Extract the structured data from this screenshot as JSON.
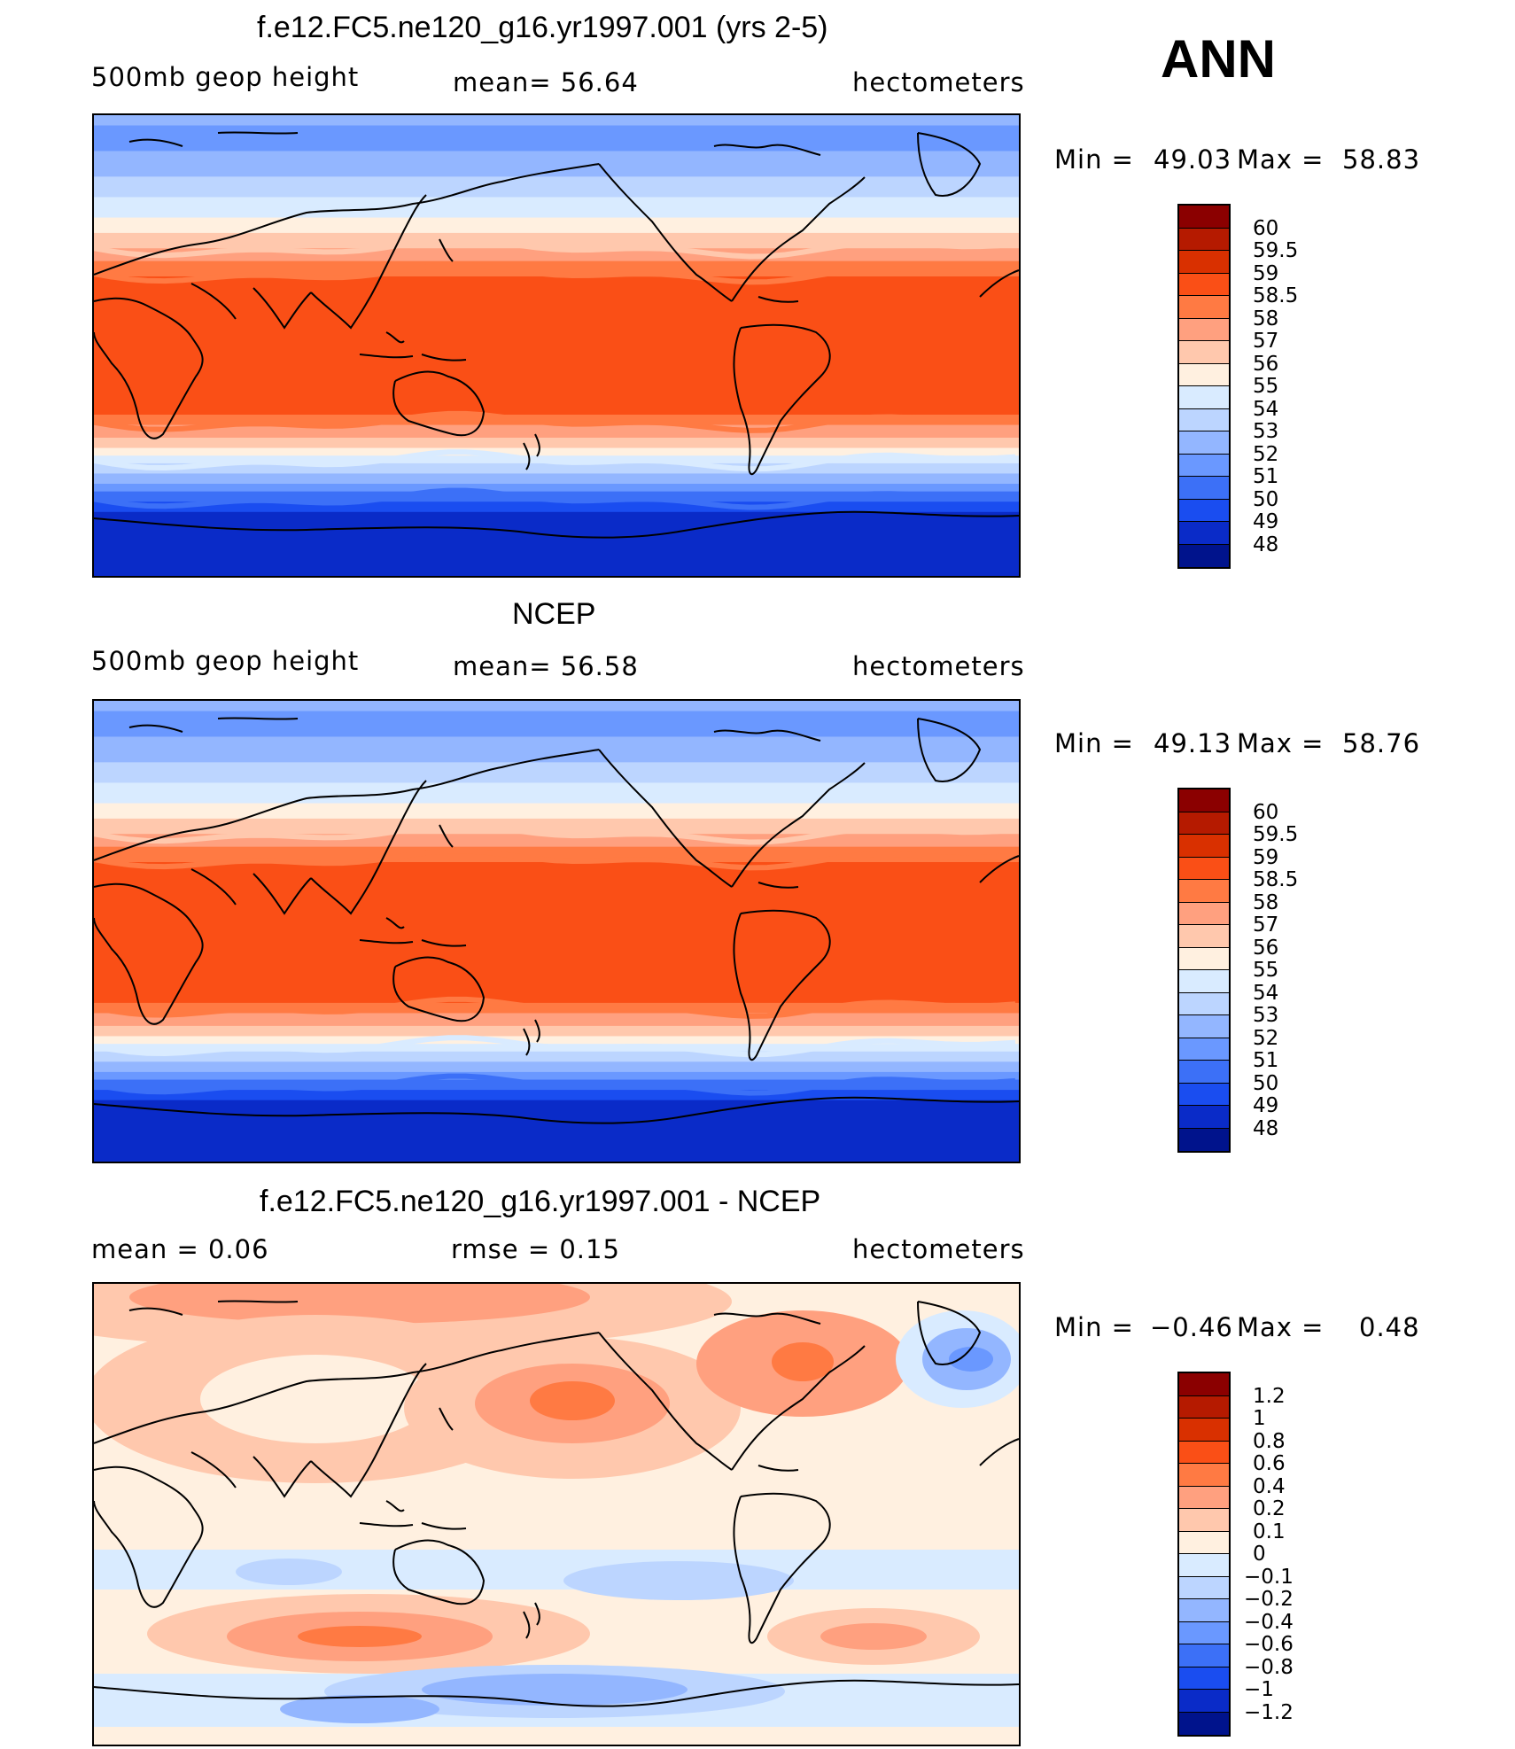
{
  "season": "ANN",
  "panels": [
    {
      "title": "f.e12.FC5.ne120_g16.yr1997.001 (yrs 2-5)",
      "left_label": "500mb geop height",
      "center_label": "mean=  56.64",
      "right_label": "hectometers",
      "min_text": "Min =",
      "min_value": "49.03",
      "max_text": "Max =",
      "max_value": "58.83",
      "field": "model"
    },
    {
      "title": "NCEP",
      "left_label": "500mb geop height",
      "center_label": "mean=  56.58",
      "right_label": "hectometers",
      "min_text": "Min =",
      "min_value": "49.13",
      "max_text": "Max =",
      "max_value": "58.76",
      "field": "obs"
    },
    {
      "title": "f.e12.FC5.ne120_g16.yr1997.001 - NCEP",
      "left_label": "mean =     0.06",
      "center_label": "rmse =     0.15",
      "right_label": "hectometers",
      "min_text": "Min =",
      "min_value": "−0.46",
      "max_text": "Max =",
      "max_value": "0.48",
      "field": "diff"
    }
  ],
  "colorbars": {
    "absolute": {
      "labels": [
        "60",
        "59.5",
        "59",
        "58.5",
        "58",
        "57",
        "56",
        "55",
        "54",
        "53",
        "52",
        "51",
        "50",
        "49",
        "48"
      ],
      "colors": [
        "#8b0000",
        "#b51a00",
        "#d93000",
        "#fa4f16",
        "#ff7a43",
        "#ffa07f",
        "#ffc8ad",
        "#fff0e0",
        "#d9ebff",
        "#bcd5ff",
        "#93b6ff",
        "#6a98ff",
        "#3c70f7",
        "#1a4df0",
        "#0a2bc8",
        "#00138c"
      ]
    },
    "difference": {
      "labels": [
        "1.2",
        "1",
        "0.8",
        "0.6",
        "0.4",
        "0.2",
        "0.1",
        "0",
        "−0.1",
        "−0.2",
        "−0.4",
        "−0.6",
        "−0.8",
        "−1",
        "−1.2"
      ],
      "colors": [
        "#8b0000",
        "#b51a00",
        "#d93000",
        "#fa4f16",
        "#ff7a43",
        "#ffa07f",
        "#ffc8ad",
        "#fff0e0",
        "#d9ebff",
        "#bcd5ff",
        "#93b6ff",
        "#6a98ff",
        "#3c70f7",
        "#1a4df0",
        "#0a2bc8",
        "#00138c"
      ]
    }
  }
}
